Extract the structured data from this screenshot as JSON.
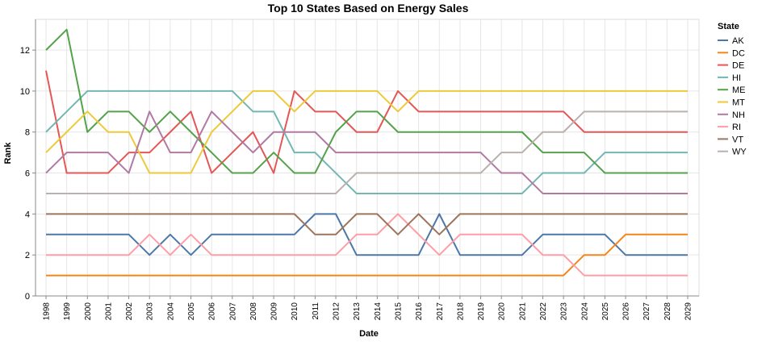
{
  "chart_data": {
    "type": "line",
    "title": "Top 10 States Based on Energy Sales",
    "xlabel": "Date",
    "ylabel": "Rank",
    "legend_title": "State",
    "legend_position": "right",
    "grid": true,
    "x": [
      1998,
      1999,
      2000,
      2001,
      2002,
      2003,
      2004,
      2005,
      2006,
      2007,
      2008,
      2009,
      2010,
      2011,
      2012,
      2013,
      2014,
      2015,
      2016,
      2017,
      2018,
      2019,
      2020,
      2021,
      2022,
      2023,
      2024,
      2025,
      2026,
      2027,
      2028,
      2029
    ],
    "x_tick_labels": [
      "1998",
      "1999",
      "2000",
      "2001",
      "2002",
      "2003",
      "2004",
      "2005",
      "2006",
      "2007",
      "2008",
      "2009",
      "2010",
      "2011",
      "2012",
      "2013",
      "2014",
      "2015",
      "2016",
      "2017",
      "2018",
      "2019",
      "2020",
      "2021",
      "2022",
      "2023",
      "2024",
      "2025",
      "2026",
      "2027",
      "2028",
      "2029"
    ],
    "ylim": [
      0,
      13.5
    ],
    "y_ticks": [
      0,
      2,
      4,
      6,
      8,
      10,
      12
    ],
    "y_tick_labels": [
      "0",
      "2",
      "4",
      "6",
      "8",
      "10",
      "12"
    ],
    "series": [
      {
        "name": "AK",
        "color": "#4c78a8",
        "values": [
          3,
          3,
          3,
          3,
          3,
          2,
          3,
          2,
          3,
          3,
          3,
          3,
          3,
          4,
          4,
          2,
          2,
          2,
          2,
          4,
          2,
          2,
          2,
          2,
          3,
          3,
          3,
          3,
          2,
          2,
          2,
          2
        ]
      },
      {
        "name": "DC",
        "color": "#f58518",
        "values": [
          1,
          1,
          1,
          1,
          1,
          1,
          1,
          1,
          1,
          1,
          1,
          1,
          1,
          1,
          1,
          1,
          1,
          1,
          1,
          1,
          1,
          1,
          1,
          1,
          1,
          1,
          2,
          2,
          3,
          3,
          3,
          3
        ]
      },
      {
        "name": "DE",
        "color": "#e45756",
        "values": [
          11,
          6,
          6,
          6,
          7,
          7,
          8,
          9,
          6,
          7,
          8,
          6,
          10,
          9,
          9,
          8,
          8,
          10,
          9,
          9,
          9,
          9,
          9,
          9,
          9,
          9,
          8,
          8,
          8,
          8,
          8,
          8
        ]
      },
      {
        "name": "HI",
        "color": "#72b7b2",
        "values": [
          8,
          9,
          10,
          10,
          10,
          10,
          10,
          10,
          10,
          10,
          9,
          9,
          7,
          7,
          6,
          5,
          5,
          5,
          5,
          5,
          5,
          5,
          5,
          5,
          6,
          6,
          6,
          7,
          7,
          7,
          7,
          7
        ]
      },
      {
        "name": "ME",
        "color": "#54a24b",
        "values": [
          12,
          13,
          8,
          9,
          9,
          8,
          9,
          8,
          7,
          6,
          6,
          7,
          6,
          6,
          8,
          9,
          9,
          8,
          8,
          8,
          8,
          8,
          8,
          8,
          7,
          7,
          7,
          6,
          6,
          6,
          6,
          6
        ]
      },
      {
        "name": "MT",
        "color": "#eeca3b",
        "values": [
          7,
          8,
          9,
          8,
          8,
          6,
          6,
          6,
          8,
          9,
          10,
          10,
          9,
          10,
          10,
          10,
          10,
          9,
          10,
          10,
          10,
          10,
          10,
          10,
          10,
          10,
          10,
          10,
          10,
          10,
          10,
          10
        ]
      },
      {
        "name": "NH",
        "color": "#b279a2",
        "values": [
          6,
          7,
          7,
          7,
          6,
          9,
          7,
          7,
          9,
          8,
          7,
          8,
          8,
          8,
          7,
          7,
          7,
          7,
          7,
          7,
          7,
          7,
          6,
          6,
          5,
          5,
          5,
          5,
          5,
          5,
          5,
          5
        ]
      },
      {
        "name": "RI",
        "color": "#ff9da6",
        "values": [
          2,
          2,
          2,
          2,
          2,
          3,
          2,
          3,
          2,
          2,
          2,
          2,
          2,
          2,
          2,
          3,
          3,
          4,
          3,
          2,
          3,
          3,
          3,
          3,
          2,
          2,
          1,
          1,
          1,
          1,
          1,
          1
        ]
      },
      {
        "name": "VT",
        "color": "#9d755d",
        "values": [
          4,
          4,
          4,
          4,
          4,
          4,
          4,
          4,
          4,
          4,
          4,
          4,
          4,
          3,
          3,
          4,
          4,
          3,
          4,
          3,
          4,
          4,
          4,
          4,
          4,
          4,
          4,
          4,
          4,
          4,
          4,
          4
        ]
      },
      {
        "name": "WY",
        "color": "#bab0ac",
        "values": [
          5,
          5,
          5,
          5,
          5,
          5,
          5,
          5,
          5,
          5,
          5,
          5,
          5,
          5,
          5,
          6,
          6,
          6,
          6,
          6,
          6,
          6,
          7,
          7,
          8,
          8,
          9,
          9,
          9,
          9,
          9,
          9
        ]
      }
    ]
  }
}
